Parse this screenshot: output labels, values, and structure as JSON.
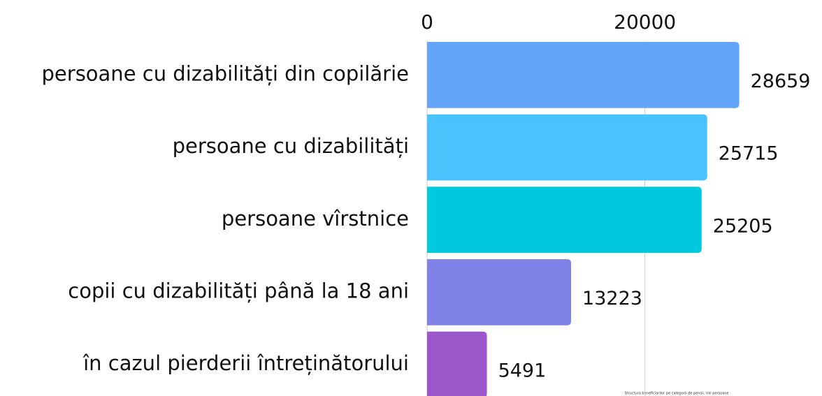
{
  "chart_data": {
    "type": "bar",
    "orientation": "horizontal",
    "subtitle": "Structura beneficiarilor pe categorii de pensii, mii persoane",
    "categories": [
      "persoane cu dizabilități din copilărie",
      "persoane cu dizabilități",
      "persoane vîrstnice",
      "copii cu dizabilități până la 18 ani",
      "în cazul pierderii întreținătorului"
    ],
    "values": [
      28659,
      25715,
      25205,
      13223,
      5491
    ],
    "colors": [
      "#64a5fa",
      "#48c3fc",
      "#00c9de",
      "#7f82e6",
      "#9b57c9"
    ],
    "xlim": [
      0,
      36000
    ],
    "xticks": [
      0,
      20000
    ],
    "grid": true
  }
}
